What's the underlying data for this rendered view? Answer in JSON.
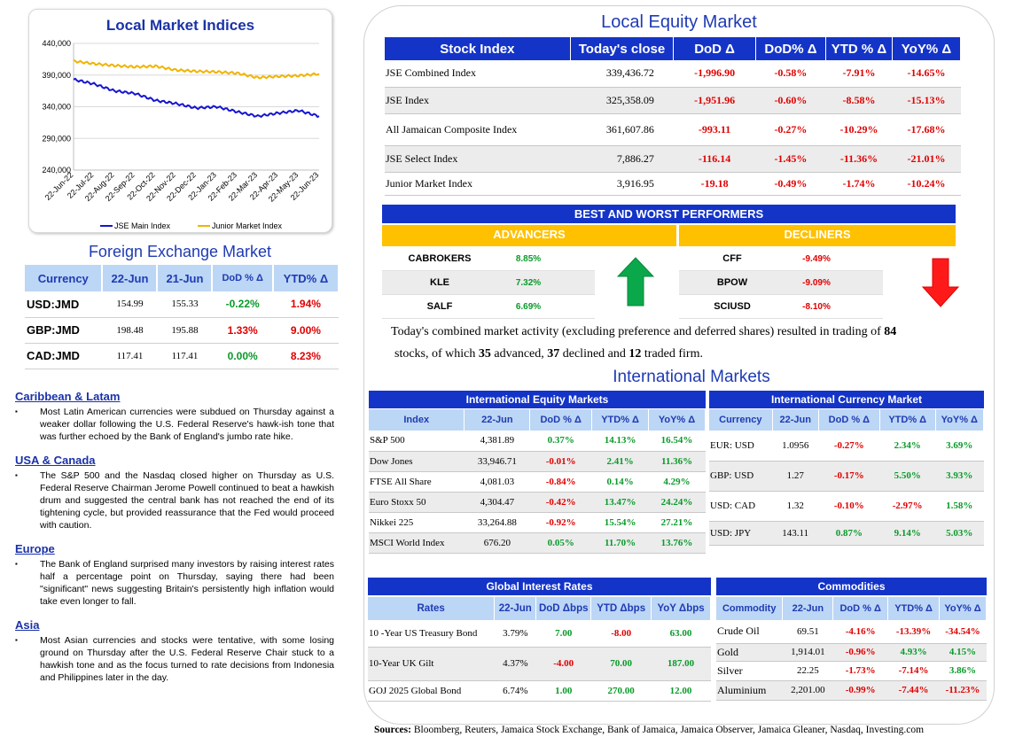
{
  "indices_chart": {
    "title": "Local Market Indices",
    "chart_data": {
      "type": "line",
      "title": "Local Market Indices",
      "x": [
        "22-Jun-22",
        "22-Jul-22",
        "22-Aug-22",
        "22-Sep-22",
        "22-Oct-22",
        "22-Nov-22",
        "22-Dec-22",
        "22-Jan-23",
        "22-Feb-23",
        "22-Mar-23",
        "22-Apr-23",
        "22-May-23",
        "22-Jun-23"
      ],
      "y_ticks": [
        "440,000",
        "390,000",
        "340,000",
        "290,000",
        "240,000"
      ],
      "ylim": [
        240000,
        440000
      ],
      "series": [
        {
          "name": "JSE Main Index",
          "color": "#1515d0",
          "values": [
            383000,
            376000,
            365000,
            361000,
            350000,
            345000,
            338000,
            340000,
            332000,
            325000,
            330000,
            334000,
            325000
          ]
        },
        {
          "name": "Junior Market Index",
          "color": "#f0b400",
          "values": [
            412000,
            408000,
            405000,
            403000,
            404000,
            398000,
            396000,
            395000,
            393000,
            386000,
            388000,
            389000,
            392000
          ]
        }
      ],
      "legend": "bottom"
    }
  },
  "fx": {
    "title": "Foreign Exchange Market",
    "headers": [
      "Currency",
      "22-Jun",
      "21-Jun",
      "DoD % Δ",
      "YTD% Δ"
    ],
    "rows": [
      [
        "USD:JMD",
        "154.99",
        "155.33",
        "-0.22%",
        "1.94%"
      ],
      [
        "GBP:JMD",
        "198.48",
        "195.88",
        "1.33%",
        "9.00%"
      ],
      [
        "CAD:JMD",
        "117.41",
        "117.41",
        "0.00%",
        "8.23%"
      ]
    ],
    "colors": [
      [
        "pos",
        "neg"
      ],
      [
        "neg",
        "neg"
      ],
      [
        "pos",
        "neg"
      ]
    ]
  },
  "news": [
    {
      "heading": "Caribbean & Latam",
      "text": "Most Latin American currencies were subdued on Thursday against a weaker dollar following the U.S. Federal Reserve's hawk-ish tone that was further echoed by the Bank of England's jumbo rate hike."
    },
    {
      "heading": "USA & Canada",
      "text": "The S&P 500 and the Nasdaq closed higher on Thursday as U.S. Federal Reserve Chairman Jerome Powell continued to beat a hawkish drum and suggested the central bank has not reached the end of its tightening cycle, but provided reassurance that the Fed would proceed with caution."
    },
    {
      "heading": "Europe",
      "text": "The Bank of England surprised many investors by raising interest rates half a percentage point on Thursday, saying there had been \"significant\" news suggesting Britain's persistently high inflation would take even longer to fall."
    },
    {
      "heading": "Asia",
      "text": "Most Asian currencies and stocks were tentative, with some losing ground on Thursday after the U.S. Federal Reserve Chair stuck to a hawkish tone and as the focus turned to rate decisions from Indonesia and Philippines later in the day."
    }
  ],
  "equity": {
    "title": "Local Equity Market",
    "headers": [
      "Stock Index",
      "Today's close",
      "DoD  Δ",
      "DoD% Δ",
      "YTD % Δ",
      "YoY% Δ"
    ],
    "rows": [
      [
        "JSE Combined Index",
        "339,436.72",
        "-1,996.90",
        "-0.58%",
        "-7.91%",
        "-14.65%"
      ],
      [
        "JSE Index",
        "325,358.09",
        "-1,951.96",
        "-0.60%",
        "-8.58%",
        "-15.13%"
      ],
      [
        "All Jamaican Composite Index",
        "361,607.86",
        "-993.11",
        "-0.27%",
        "-10.29%",
        "-17.68%"
      ],
      [
        "JSE Select Index",
        "7,886.27",
        "-116.14",
        "-1.45%",
        "-11.36%",
        "-21.01%"
      ],
      [
        "Junior Market Index",
        "3,916.95",
        "-19.18",
        "-0.49%",
        "-1.74%",
        "-10.24%"
      ]
    ]
  },
  "performers": {
    "title": "BEST AND WORST PERFORMERS",
    "advancers_label": "ADVANCERS",
    "decliners_label": "DECLINERS",
    "advancers": [
      [
        "CABROKERS",
        "8.85%"
      ],
      [
        "KLE",
        "7.32%"
      ],
      [
        "SALF",
        "6.69%"
      ]
    ],
    "decliners": [
      [
        "CFF",
        "-9.49%"
      ],
      [
        "BPOW",
        "-9.09%"
      ],
      [
        "SCIUSD",
        "-8.10%"
      ]
    ],
    "up_icon": "green-up-arrow-icon",
    "down_icon": "red-down-arrow-icon"
  },
  "summary": {
    "part1": "Today's combined market activity (excluding preference and deferred shares) resulted in trading of ",
    "traded": "84",
    "part2": " stocks, of which ",
    "advanced": "35",
    "part3": " advanced, ",
    "declined": "37",
    "part4": " declined and ",
    "firm": "12",
    "part5": " traded firm."
  },
  "intl": {
    "title": "International Markets",
    "equity": {
      "title": "International Equity Markets",
      "headers": [
        "Index",
        "22-Jun",
        "DoD % Δ",
        "YTD% Δ",
        "YoY% Δ"
      ],
      "rows": [
        [
          "S&P 500",
          "4,381.89",
          "0.37%",
          "14.13%",
          "16.54%"
        ],
        [
          "Dow Jones",
          "33,946.71",
          "-0.01%",
          "2.41%",
          "11.36%"
        ],
        [
          "FTSE All Share",
          "4,081.03",
          "-0.84%",
          "0.14%",
          "4.29%"
        ],
        [
          "Euro Stoxx 50",
          "4,304.47",
          "-0.42%",
          "13.47%",
          "24.24%"
        ],
        [
          "Nikkei 225",
          "33,264.88",
          "-0.92%",
          "15.54%",
          "27.21%"
        ],
        [
          "MSCI World Index",
          "676.20",
          "0.05%",
          "11.70%",
          "13.76%"
        ]
      ]
    },
    "currency": {
      "title": "International Currency Market",
      "headers": [
        "Currency",
        "22-Jun",
        "DoD % Δ",
        "YTD% Δ",
        "YoY% Δ"
      ],
      "rows": [
        [
          "EUR: USD",
          "1.0956",
          "-0.27%",
          "2.34%",
          "3.69%"
        ],
        [
          "GBP: USD",
          "1.27",
          "-0.17%",
          "5.50%",
          "3.93%"
        ],
        [
          "USD: CAD",
          "1.32",
          "-0.10%",
          "-2.97%",
          "1.58%"
        ],
        [
          "USD: JPY",
          "143.11",
          "0.87%",
          "9.14%",
          "5.03%"
        ]
      ]
    },
    "rates": {
      "title": "Global Interest Rates",
      "headers": [
        "Rates",
        "22-Jun",
        "DoD Δbps",
        "YTD Δbps",
        "YoY Δbps"
      ],
      "rows": [
        [
          "10 -Year US Treasury Bond",
          "3.79%",
          "7.00",
          "-8.00",
          "63.00"
        ],
        [
          "10-Year UK Gilt",
          "4.37%",
          "-4.00",
          "70.00",
          "187.00"
        ],
        [
          "GOJ 2025 Global Bond",
          "6.74%",
          "1.00",
          "270.00",
          "12.00"
        ]
      ]
    },
    "commodities": {
      "title": "Commodities",
      "headers": [
        "Commodity",
        "22-Jun",
        "DoD % Δ",
        "YTD% Δ",
        "YoY% Δ"
      ],
      "rows": [
        [
          "Crude Oil",
          "69.51",
          "-4.16%",
          "-13.39%",
          "-34.54%"
        ],
        [
          "Gold",
          "1,914.01",
          "-0.96%",
          "4.93%",
          "4.15%"
        ],
        [
          "Silver",
          "22.25",
          "-1.73%",
          "-7.14%",
          "3.86%"
        ],
        [
          "Aluminium",
          "2,201.00",
          "-0.99%",
          "-7.44%",
          "-11.23%"
        ]
      ]
    }
  },
  "sources": {
    "label": "Sources:",
    "text": " Bloomberg, Reuters, Jamaica Stock Exchange, Bank of Jamaica, Jamaica Observer, Jamaica Gleaner, Nasdaq, Investing.com"
  }
}
